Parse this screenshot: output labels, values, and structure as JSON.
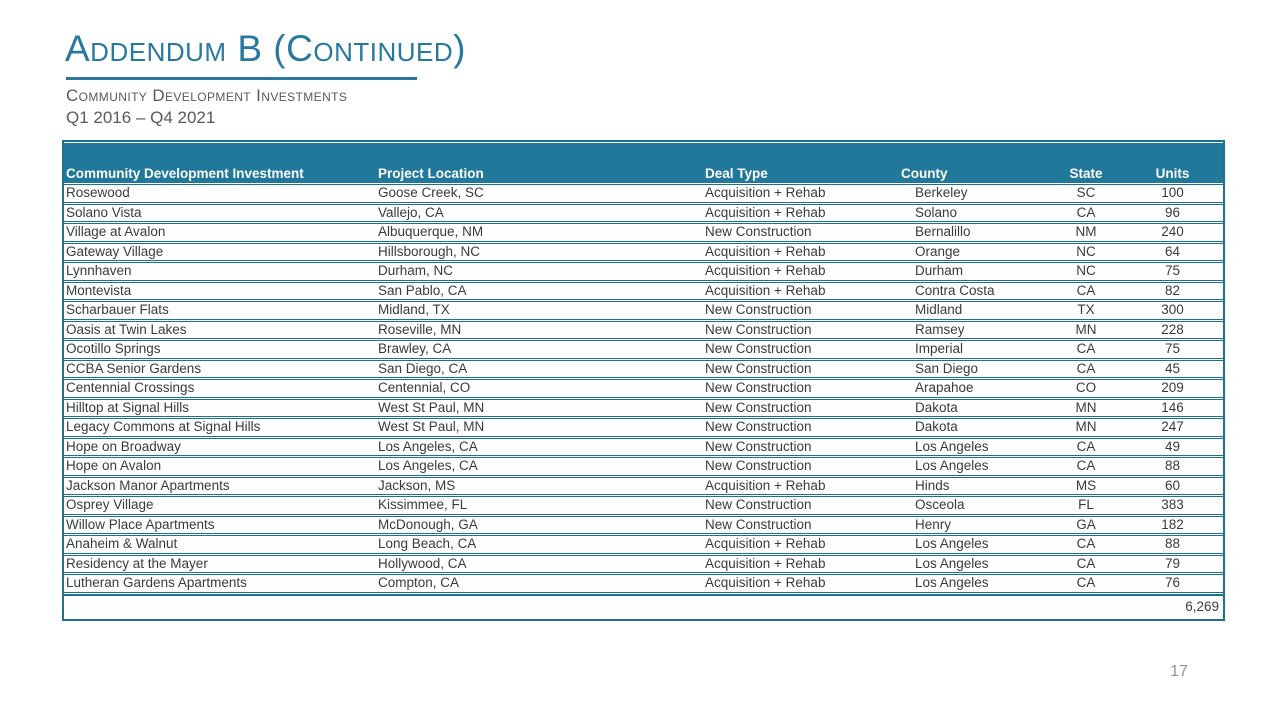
{
  "slide": {
    "title": "Addendum B (Continued)",
    "subtitle": "Community Development Investments",
    "period": "Q1 2016 – Q4 2021",
    "page_number": "17"
  },
  "colors": {
    "accent": "#20789B",
    "line": "#1D7291",
    "title_text": "#2878A0",
    "body_text": "#3A3A3A",
    "muted_text": "#595959",
    "page_num": "#8A9599",
    "header_text": "#FFFFFF",
    "bg": "#FFFFFF"
  },
  "table": {
    "columns": [
      {
        "label": "Community Development Investment"
      },
      {
        "label": "Project Location"
      },
      {
        "label": "Deal Type"
      },
      {
        "label": "County"
      },
      {
        "label": "State"
      },
      {
        "label": "Units"
      }
    ],
    "row_keys": [
      "name",
      "location",
      "deal_type",
      "county",
      "state",
      "units"
    ],
    "rows": [
      {
        "name": "Rosewood",
        "location": "Goose Creek, SC",
        "deal_type": "Acquisition + Rehab",
        "county": "Berkeley",
        "state": "SC",
        "units": "100"
      },
      {
        "name": "Solano Vista",
        "location": "Vallejo, CA",
        "deal_type": "Acquisition + Rehab",
        "county": "Solano",
        "state": "CA",
        "units": "96"
      },
      {
        "name": "Village at Avalon",
        "location": "Albuquerque, NM",
        "deal_type": "New Construction",
        "county": "Bernalillo",
        "state": "NM",
        "units": "240"
      },
      {
        "name": "Gateway Village",
        "location": "Hillsborough, NC",
        "deal_type": "Acquisition + Rehab",
        "county": "Orange",
        "state": "NC",
        "units": "64"
      },
      {
        "name": "Lynnhaven",
        "location": "Durham, NC",
        "deal_type": "Acquisition + Rehab",
        "county": "Durham",
        "state": "NC",
        "units": "75"
      },
      {
        "name": "Montevista",
        "location": "San Pablo, CA",
        "deal_type": "Acquisition + Rehab",
        "county": "Contra Costa",
        "state": "CA",
        "units": "82"
      },
      {
        "name": "Scharbauer Flats",
        "location": "Midland, TX",
        "deal_type": "New Construction",
        "county": "Midland",
        "state": "TX",
        "units": "300"
      },
      {
        "name": "Oasis at Twin Lakes",
        "location": "Roseville, MN",
        "deal_type": "New Construction",
        "county": "Ramsey",
        "state": "MN",
        "units": "228"
      },
      {
        "name": "Ocotillo Springs",
        "location": "Brawley, CA",
        "deal_type": "New Construction",
        "county": "Imperial",
        "state": "CA",
        "units": "75"
      },
      {
        "name": "CCBA Senior Gardens",
        "location": "San Diego, CA",
        "deal_type": "New Construction",
        "county": "San Diego",
        "state": "CA",
        "units": "45"
      },
      {
        "name": "Centennial Crossings",
        "location": "Centennial, CO",
        "deal_type": "New Construction",
        "county": "Arapahoe",
        "state": "CO",
        "units": "209"
      },
      {
        "name": "Hilltop at Signal Hills",
        "location": "West St Paul, MN",
        "deal_type": "New Construction",
        "county": "Dakota",
        "state": "MN",
        "units": "146"
      },
      {
        "name": "Legacy Commons at Signal Hills",
        "location": "West St Paul, MN",
        "deal_type": "New Construction",
        "county": "Dakota",
        "state": "MN",
        "units": "247"
      },
      {
        "name": "Hope on Broadway",
        "location": "Los Angeles, CA",
        "deal_type": "New Construction",
        "county": "Los Angeles",
        "state": "CA",
        "units": "49"
      },
      {
        "name": "Hope on Avalon",
        "location": "Los Angeles, CA",
        "deal_type": "New Construction",
        "county": "Los Angeles",
        "state": "CA",
        "units": "88"
      },
      {
        "name": "Jackson Manor Apartments",
        "location": "Jackson, MS",
        "deal_type": "Acquisition + Rehab",
        "county": "Hinds",
        "state": "MS",
        "units": "60"
      },
      {
        "name": "Osprey Village",
        "location": "Kissimmee, FL",
        "deal_type": "New Construction",
        "county": "Osceola",
        "state": "FL",
        "units": "383"
      },
      {
        "name": "Willow Place Apartments",
        "location": "McDonough, GA",
        "deal_type": "New Construction",
        "county": "Henry",
        "state": "GA",
        "units": "182"
      },
      {
        "name": "Anaheim & Walnut",
        "location": "Long Beach, CA",
        "deal_type": "Acquisition + Rehab",
        "county": "Los Angeles",
        "state": "CA",
        "units": "88"
      },
      {
        "name": "Residency at the Mayer",
        "location": "Hollywood, CA",
        "deal_type": "Acquisition + Rehab",
        "county": "Los Angeles",
        "state": "CA",
        "units": "79"
      },
      {
        "name": "Lutheran Gardens Apartments",
        "location": "Compton, CA",
        "deal_type": "Acquisition + Rehab",
        "county": "Los Angeles",
        "state": "CA",
        "units": "76"
      }
    ],
    "total_units": "6,269"
  }
}
